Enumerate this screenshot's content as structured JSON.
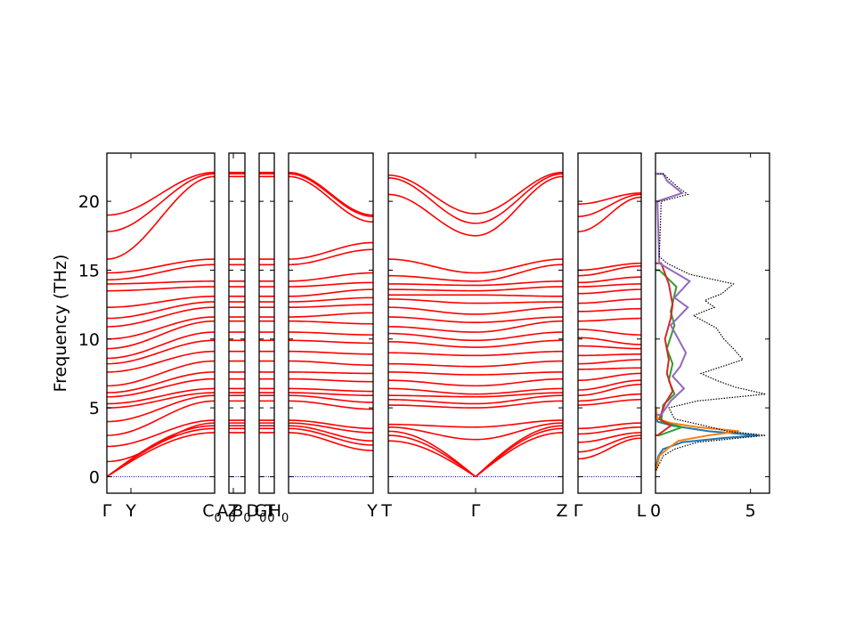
{
  "chart_data": {
    "type": "line",
    "ylabel": "Frequency (THz)",
    "ylim": [
      -1.2,
      23.5
    ],
    "y_ticks": [
      0,
      5,
      10,
      15,
      20
    ],
    "band_color": "#ff0000",
    "zero_line_color": "#00008b",
    "bands": {
      "segments": [
        {
          "name": "Γ-Y-C0",
          "x_start_label": "Γ",
          "x_mid_labels": [
            "Y"
          ],
          "x_end_label": "C",
          "x_end_sub": "0",
          "start_freqs": [
            0,
            0,
            0,
            1.1,
            2.2,
            3.0,
            4.0,
            5.0,
            5.3,
            5.8,
            6.1,
            6.6,
            7.6,
            8.2,
            8.6,
            9.3,
            10.0,
            10.9,
            11.5,
            12.3,
            13.5,
            14.0,
            14.3,
            14.8,
            15.8,
            17.8,
            19.0
          ],
          "end_freqs": [
            3.2,
            3.5,
            3.7,
            3.9,
            4.1,
            5.5,
            5.9,
            6.1,
            6.4,
            7.1,
            7.6,
            8.4,
            9.1,
            9.9,
            10.5,
            11.3,
            11.6,
            12.3,
            12.7,
            13.1,
            13.8,
            14.2,
            15.4,
            15.8,
            21.8,
            22.0,
            22.1
          ]
        },
        {
          "name": "C0-Z-B0",
          "x_start_label": "C",
          "x_start_sub": "0",
          "x_mid_labels": [
            "Z"
          ],
          "x_end_label": "B",
          "x_end_sub": "0",
          "freqs": [
            3.2,
            3.5,
            3.7,
            3.9,
            4.1,
            5.5,
            5.9,
            6.1,
            6.4,
            7.1,
            7.6,
            8.4,
            9.1,
            9.9,
            10.5,
            11.3,
            11.6,
            12.3,
            12.7,
            13.1,
            13.8,
            14.2,
            15.4,
            15.8,
            21.8,
            22.0,
            22.1
          ]
        },
        {
          "name": "D0-G0",
          "x_start_label": "D",
          "x_start_sub": "0",
          "x_end_label": "G",
          "x_end_sub": "0",
          "freqs": [
            3.2,
            3.5,
            3.7,
            3.9,
            4.1,
            5.5,
            5.9,
            6.1,
            6.4,
            7.1,
            7.6,
            8.4,
            9.1,
            9.9,
            10.5,
            11.3,
            11.6,
            12.3,
            12.7,
            13.1,
            13.8,
            14.2,
            15.4,
            15.8,
            21.8,
            22.0,
            22.1
          ]
        },
        {
          "name": "H0-Y",
          "x_start_label": "H",
          "x_start_sub": "0",
          "x_end_label": "Y",
          "start_freqs": [
            3.2,
            3.5,
            3.7,
            3.9,
            4.1,
            5.5,
            5.9,
            6.1,
            6.4,
            7.1,
            7.6,
            8.4,
            9.1,
            9.9,
            10.5,
            11.3,
            11.6,
            12.3,
            12.7,
            13.1,
            13.8,
            14.2,
            15.4,
            15.8,
            21.8,
            22.0,
            22.1
          ],
          "end_freqs": [
            1.9,
            2.3,
            2.6,
            3.2,
            3.5,
            4.9,
            5.4,
            5.9,
            6.2,
            6.9,
            7.5,
            8.1,
            8.9,
            9.7,
            10.3,
            11.1,
            11.9,
            12.5,
            13.0,
            13.6,
            14.1,
            14.8,
            16.5,
            17.0,
            18.5,
            18.9,
            19.0
          ]
        },
        {
          "name": "T-Γ-Z",
          "x_start_label": "T",
          "x_mid_labels": [
            "Γ"
          ],
          "x_end_label": "Z",
          "start_freqs": [
            2.6,
            3.0,
            3.3,
            3.6,
            3.8,
            5.2,
            5.6,
            5.9,
            6.4,
            7.0,
            7.6,
            8.2,
            9.0,
            9.8,
            10.4,
            10.9,
            11.6,
            12.3,
            12.9,
            13.2,
            13.6,
            14.0,
            14.6,
            15.8,
            20.5,
            21.7,
            21.9
          ],
          "mid_freqs": [
            0,
            0,
            0,
            2.7,
            3.6,
            5.0,
            5.3,
            5.8,
            6.0,
            6.6,
            7.4,
            8.0,
            8.8,
            9.4,
            9.9,
            10.5,
            11.2,
            11.8,
            12.6,
            13.2,
            13.5,
            13.9,
            14.2,
            14.8,
            17.5,
            18.4,
            19.1
          ],
          "end_freqs": [
            3.2,
            3.5,
            3.7,
            3.9,
            4.1,
            5.5,
            5.9,
            6.1,
            6.4,
            7.1,
            7.6,
            8.4,
            9.1,
            9.9,
            10.5,
            11.3,
            11.6,
            12.3,
            12.7,
            13.1,
            13.8,
            14.2,
            15.4,
            15.8,
            21.8,
            22.0,
            22.1
          ]
        },
        {
          "name": "Γ-L",
          "x_start_label": "Γ",
          "x_end_label": "L",
          "start_freqs": [
            1.3,
            1.8,
            2.5,
            3.1,
            3.5,
            5.2,
            5.5,
            5.9,
            6.3,
            7.0,
            7.8,
            8.2,
            8.8,
            9.5,
            10.1,
            10.7,
            11.3,
            12.0,
            12.6,
            13.3,
            13.8,
            14.1,
            14.6,
            15.0,
            17.8,
            18.9,
            19.8
          ],
          "end_freqs": [
            2.8,
            3.0,
            3.2,
            3.6,
            3.9,
            5.6,
            6.0,
            6.7,
            7.0,
            7.5,
            7.9,
            8.5,
            8.9,
            9.3,
            9.6,
            10.3,
            11.5,
            12.2,
            12.9,
            13.6,
            14.0,
            14.5,
            15.3,
            15.5,
            20.3,
            20.5,
            20.6
          ]
        }
      ]
    },
    "dos": {
      "xlim": [
        0,
        6
      ],
      "x_ticks": [
        0,
        5
      ],
      "total_style": "dotted",
      "total_color": "#000000",
      "series": [
        {
          "color": "#1f77b4",
          "freqs": [
            0.5,
            1.5,
            2.0,
            2.5,
            2.8,
            3.0,
            3.3,
            3.7,
            4.0,
            5.0
          ],
          "values": [
            0.02,
            0.15,
            0.4,
            1.4,
            3.5,
            5.4,
            2.8,
            0.9,
            0.1,
            0.02
          ]
        },
        {
          "color": "#ff7f0e",
          "freqs": [
            0.5,
            1.5,
            2.0,
            2.6,
            3.0,
            3.3,
            3.6,
            3.9,
            4.2,
            5.0
          ],
          "values": [
            0.05,
            0.2,
            0.6,
            1.2,
            2.8,
            4.4,
            2.2,
            0.8,
            0.1,
            0.02
          ]
        },
        {
          "color": "#2ca02c",
          "freqs": [
            3.0,
            3.6,
            4.0,
            5.2,
            6.0,
            7.0,
            8.2,
            9.3,
            11.0,
            12.0,
            13.8,
            15.0
          ],
          "values": [
            0.2,
            1.4,
            0.3,
            0.4,
            1.0,
            0.7,
            0.9,
            0.6,
            1.0,
            0.8,
            1.1,
            0.2
          ]
        },
        {
          "color": "#d62728",
          "freqs": [
            3.0,
            3.7,
            4.2,
            5.3,
            6.2,
            7.5,
            8.5,
            10.0,
            11.5,
            12.5,
            14.0,
            15.5
          ],
          "values": [
            0.1,
            0.8,
            0.2,
            0.5,
            0.9,
            0.6,
            0.7,
            0.5,
            0.8,
            0.9,
            0.7,
            0.3
          ]
        },
        {
          "color": "#9467bd",
          "freqs": [
            4.5,
            5.5,
            6.4,
            7.3,
            8.0,
            9.0,
            10.0,
            11.0,
            12.3,
            13.0,
            14.2,
            15.5,
            20.0,
            20.6,
            21.5,
            22.0
          ],
          "values": [
            0.3,
            0.8,
            1.5,
            0.9,
            1.3,
            1.6,
            1.2,
            0.8,
            1.7,
            1.0,
            1.8,
            0.2,
            0.1,
            1.4,
            0.6,
            0.4
          ]
        },
        {
          "color": "#000000",
          "freqs": [
            0.5,
            1.5,
            2.0,
            2.5,
            3.0,
            3.3,
            3.7,
            4.2,
            5.0,
            5.5,
            6.0,
            6.5,
            7.0,
            7.5,
            8.5,
            9.3,
            10.0,
            10.8,
            11.7,
            12.3,
            12.8,
            13.3,
            14.0,
            14.7,
            15.5,
            16.0,
            20.0,
            20.5,
            21.0,
            22.0
          ],
          "values": [
            0.05,
            0.4,
            1.0,
            2.2,
            5.8,
            3.8,
            2.6,
            1.0,
            0.7,
            2.2,
            5.8,
            4.2,
            3.2,
            2.4,
            4.6,
            4.1,
            3.6,
            3.2,
            2.0,
            3.1,
            2.6,
            3.5,
            4.1,
            1.8,
            0.6,
            0.2,
            0.3,
            1.7,
            1.2,
            0.4
          ]
        }
      ]
    },
    "x_tick_labels": [
      {
        "text": "Γ",
        "sub": ""
      },
      {
        "text": "Y",
        "sub": ""
      },
      {
        "text": "C",
        "sub": "0"
      },
      {
        "text": "A",
        "sub": "0"
      },
      {
        "text": "Z",
        "sub": ""
      },
      {
        "text": "B",
        "sub": "0"
      },
      {
        "text": "D",
        "sub": "0"
      },
      {
        "text": "G",
        "sub": "0"
      },
      {
        "text": "T",
        "sub": ""
      },
      {
        "text": "H",
        "sub": "0"
      },
      {
        "text": "Y",
        "sub": ""
      },
      {
        "text": "T",
        "sub": ""
      },
      {
        "text": "Γ",
        "sub": ""
      },
      {
        "text": "Z",
        "sub": ""
      },
      {
        "text": "Γ",
        "sub": ""
      },
      {
        "text": "L",
        "sub": ""
      }
    ]
  }
}
